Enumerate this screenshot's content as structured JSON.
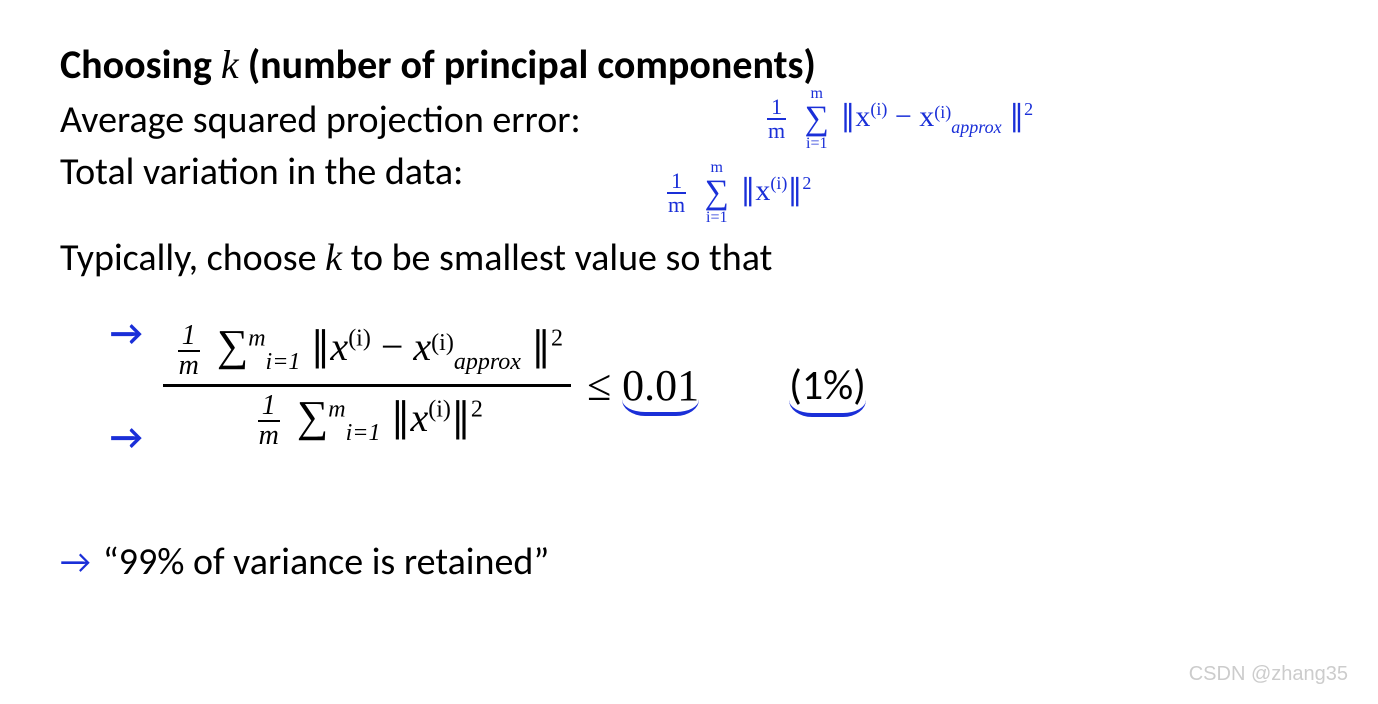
{
  "title_pre": "Choosing",
  "title_k": "k",
  "title_post": "(number of principal components)",
  "line1": "Average squared projection error:",
  "line2": "Total variation in the data:",
  "hw1_frac_top": "1",
  "hw1_frac_bot": "m",
  "hw1_sum_top": "m",
  "hw1_sum_bot": "i=1",
  "hw1_body_a": "∥x",
  "hw1_sup_i": "(i)",
  "hw1_minus": "−  x",
  "hw1_approx": "approx",
  "hw1_end": "∥",
  "hw1_sq": "2",
  "hw2_body": "∥x",
  "typical_pre": "Typically, choose",
  "typical_k": "k",
  "typical_post": "to be smallest value so that",
  "arrow": "→",
  "bf_top_frac_t": "1",
  "bf_top_frac_b": "m",
  "bf_sum_sym": "∑",
  "bf_sum_top": "m",
  "bf_sum_bot": "i=1",
  "bf_norm_open": "∥",
  "bf_x": "x",
  "bf_supi": "(i)",
  "bf_minus": " − ",
  "bf_approx": "approx",
  "bf_norm_close": "∥",
  "bf_sq": "2",
  "ineq": "≤ ",
  "ineq_val": "0.01",
  "percent": "(1%)",
  "footer": "“99% of variance is retained”",
  "watermark": "CSDN @zhang35",
  "colors": {
    "handwriting": "#1a2fd8",
    "text": "#000000",
    "watermark": "#cccccc",
    "background": "#ffffff"
  }
}
